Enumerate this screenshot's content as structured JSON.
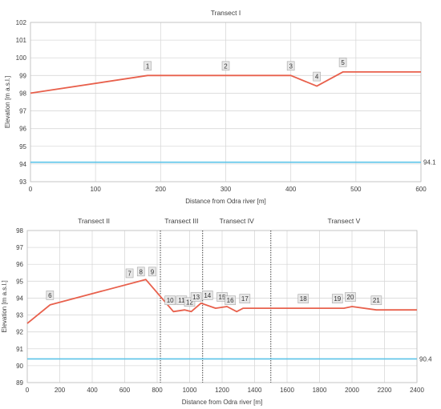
{
  "colors": {
    "terrain": "#e8604c",
    "water": "#5bc4e8",
    "grid": "#d9d9d9",
    "axis": "#bfbfbf",
    "divider": "#404040",
    "label_bg": "#e8e8e8",
    "label_border": "#a6a6a6"
  },
  "chart_data": [
    {
      "type": "line",
      "title": "Transect I",
      "xlabel": "Distance from Odra river [m]",
      "ylabel": "Elevation [m a.s.l.]",
      "xlim": [
        0,
        600
      ],
      "ylim": [
        93,
        102
      ],
      "x_ticks": [
        0,
        100,
        200,
        300,
        400,
        500,
        600
      ],
      "y_ticks": [
        93,
        94,
        95,
        96,
        97,
        98,
        99,
        100,
        101,
        102
      ],
      "grid": true,
      "series": [
        {
          "role": "terrain",
          "x": [
            0,
            180,
            400,
            440,
            480,
            600
          ],
          "y": [
            98.0,
            99.0,
            99.0,
            98.4,
            99.2,
            99.2
          ]
        },
        {
          "role": "water",
          "x": [
            0,
            600
          ],
          "y": [
            94.1,
            94.1
          ]
        }
      ],
      "water_label": "94.1",
      "point_labels": [
        {
          "text": "1",
          "x": 180,
          "y": 99.0
        },
        {
          "text": "2",
          "x": 300,
          "y": 99.0
        },
        {
          "text": "3",
          "x": 400,
          "y": 99.0
        },
        {
          "text": "4",
          "x": 440,
          "y": 98.4
        },
        {
          "text": "5",
          "x": 480,
          "y": 99.2
        }
      ]
    },
    {
      "type": "line",
      "title": "",
      "xlabel": "Distance from Odra river [m]",
      "ylabel": "Elevation [m a.s.l.]",
      "xlim": [
        0,
        2400
      ],
      "ylim": [
        89,
        98
      ],
      "x_ticks": [
        0,
        200,
        400,
        600,
        800,
        1000,
        1200,
        1400,
        1600,
        1800,
        2000,
        2200,
        2400
      ],
      "y_ticks": [
        89,
        90,
        91,
        92,
        93,
        94,
        95,
        96,
        97,
        98
      ],
      "grid": true,
      "series": [
        {
          "role": "terrain",
          "x": [
            0,
            140,
            730,
            900,
            970,
            1010,
            1070,
            1160,
            1230,
            1290,
            1330,
            1950,
            2000,
            2150,
            2400
          ],
          "y": [
            92.5,
            93.6,
            95.1,
            93.2,
            93.3,
            93.2,
            93.7,
            93.4,
            93.5,
            93.2,
            93.4,
            93.4,
            93.5,
            93.3,
            93.3
          ]
        },
        {
          "role": "water",
          "x": [
            0,
            2400
          ],
          "y": [
            90.4,
            90.4
          ]
        }
      ],
      "water_label": "90.4",
      "sections": [
        {
          "name": "Transect II",
          "from": 0,
          "to": 820
        },
        {
          "name": "Transect III",
          "from": 820,
          "to": 1080
        },
        {
          "name": "Transect IV",
          "from": 1080,
          "to": 1500
        },
        {
          "name": "Transect V",
          "from": 1500,
          "to": 2400
        }
      ],
      "dividers": [
        820,
        1080,
        1500
      ],
      "point_labels": [
        {
          "text": "6",
          "x": 140,
          "y": 93.6
        },
        {
          "text": "7",
          "x": 630,
          "y": 94.9
        },
        {
          "text": "8",
          "x": 700,
          "y": 95.0
        },
        {
          "text": "9",
          "x": 770,
          "y": 95.0
        },
        {
          "text": "10",
          "x": 880,
          "y": 93.3
        },
        {
          "text": "11",
          "x": 950,
          "y": 93.3
        },
        {
          "text": "12",
          "x": 1000,
          "y": 93.2
        },
        {
          "text": "13",
          "x": 1040,
          "y": 93.5
        },
        {
          "text": "14",
          "x": 1110,
          "y": 93.6
        },
        {
          "text": "15",
          "x": 1200,
          "y": 93.5
        },
        {
          "text": "16",
          "x": 1250,
          "y": 93.3
        },
        {
          "text": "17",
          "x": 1340,
          "y": 93.4
        },
        {
          "text": "18",
          "x": 1700,
          "y": 93.4
        },
        {
          "text": "19",
          "x": 1910,
          "y": 93.4
        },
        {
          "text": "20",
          "x": 1990,
          "y": 93.5
        },
        {
          "text": "21",
          "x": 2150,
          "y": 93.3
        }
      ]
    }
  ]
}
